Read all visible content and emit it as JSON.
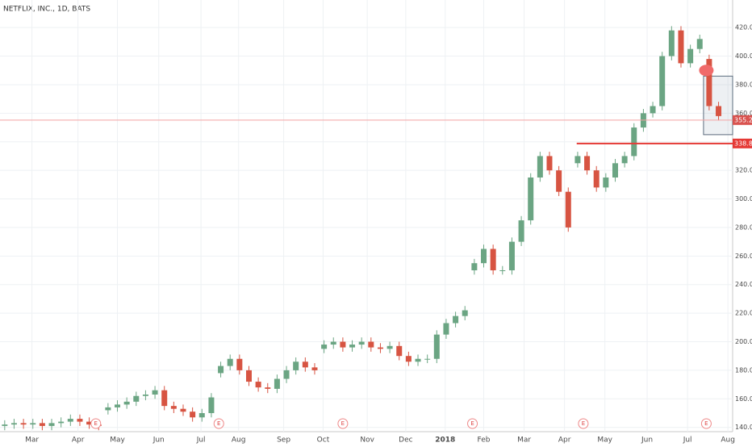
{
  "chart_data": {
    "type": "candlestick",
    "title": "NETFLIX, INC., 1D, BATS",
    "x": [
      0,
      1,
      2,
      3,
      4,
      5,
      6,
      7,
      8,
      9,
      10,
      11,
      12,
      13,
      14,
      15,
      16,
      17,
      18,
      19,
      20,
      21,
      22,
      23,
      24,
      25,
      26,
      27,
      28,
      29,
      30,
      31,
      32,
      33,
      34,
      35,
      36,
      37,
      38,
      39,
      40,
      41,
      42,
      43,
      44,
      45,
      46,
      47,
      48,
      49,
      50,
      51,
      52,
      53,
      54,
      55,
      56,
      57,
      58,
      59,
      60,
      61,
      62,
      63,
      64,
      65,
      66,
      67,
      68,
      69,
      70,
      71,
      72,
      73,
      74,
      75,
      76
    ],
    "open": [
      141,
      142,
      143,
      142,
      143,
      141,
      143,
      144,
      146,
      144,
      142,
      152,
      154,
      156,
      158,
      162,
      163,
      166,
      155,
      153,
      151,
      147,
      150,
      178,
      183,
      188,
      180,
      172,
      168,
      167,
      174,
      180,
      186,
      182,
      195,
      198,
      200,
      196,
      198,
      200,
      196,
      195,
      197,
      190,
      186,
      188,
      188,
      205,
      213,
      218,
      250,
      255,
      265,
      250,
      250,
      270,
      285,
      315,
      330,
      320,
      305,
      325,
      330,
      320,
      308,
      315,
      325,
      330,
      350,
      360,
      365,
      400,
      418,
      395,
      405,
      398,
      365
    ],
    "high": [
      145,
      146,
      146,
      146,
      146,
      146,
      147,
      149,
      149,
      147,
      145,
      157,
      159,
      161,
      165,
      166,
      169,
      169,
      158,
      156,
      154,
      153,
      164,
      186,
      191,
      191,
      183,
      175,
      171,
      177,
      183,
      189,
      189,
      185,
      201,
      203,
      203,
      201,
      203,
      203,
      199,
      200,
      200,
      193,
      191,
      191,
      208,
      216,
      221,
      225,
      258,
      268,
      268,
      253,
      273,
      288,
      318,
      333,
      333,
      323,
      308,
      333,
      333,
      323,
      318,
      328,
      333,
      353,
      363,
      368,
      403,
      421,
      421,
      408,
      415,
      401,
      368
    ],
    "low": [
      138,
      139,
      139,
      139,
      138,
      138,
      140,
      141,
      141,
      139,
      138,
      149,
      151,
      153,
      155,
      159,
      160,
      152,
      150,
      148,
      144,
      144,
      147,
      175,
      180,
      177,
      169,
      165,
      164,
      164,
      171,
      177,
      179,
      177,
      192,
      195,
      193,
      193,
      195,
      193,
      192,
      192,
      187,
      183,
      183,
      185,
      185,
      202,
      210,
      215,
      247,
      252,
      247,
      247,
      247,
      267,
      282,
      312,
      317,
      302,
      277,
      322,
      317,
      305,
      305,
      312,
      322,
      327,
      347,
      357,
      362,
      397,
      392,
      392,
      402,
      362,
      355
    ],
    "close": [
      142,
      143,
      142,
      143,
      141,
      143,
      144,
      146,
      144,
      142,
      141,
      154,
      156,
      158,
      162,
      163,
      166,
      155,
      153,
      151,
      147,
      150,
      161,
      183,
      188,
      180,
      172,
      168,
      167,
      174,
      180,
      186,
      182,
      180,
      198,
      200,
      196,
      198,
      200,
      196,
      195,
      197,
      190,
      186,
      188,
      188,
      205,
      213,
      218,
      222,
      255,
      265,
      250,
      250,
      270,
      285,
      315,
      330,
      320,
      305,
      280,
      330,
      320,
      308,
      315,
      325,
      330,
      350,
      360,
      365,
      400,
      418,
      395,
      405,
      412,
      365,
      358
    ],
    "up_color": "#6ba583",
    "down_color": "#d75442",
    "xlim": [
      -0.5,
      77.5
    ],
    "ylim": [
      137,
      428
    ],
    "xticks": [
      {
        "value": 2.9,
        "label": "Mar"
      },
      {
        "value": 7.8,
        "label": "Apr"
      },
      {
        "value": 12.0,
        "label": "May"
      },
      {
        "value": 16.4,
        "label": "Jun"
      },
      {
        "value": 20.9,
        "label": "Jul"
      },
      {
        "value": 24.9,
        "label": "Aug"
      },
      {
        "value": 29.7,
        "label": "Sep"
      },
      {
        "value": 33.9,
        "label": "Oct"
      },
      {
        "value": 38.6,
        "label": "Nov"
      },
      {
        "value": 42.7,
        "label": "Dec"
      },
      {
        "value": 46.9,
        "label": "2018"
      },
      {
        "value": 51.0,
        "label": "Feb"
      },
      {
        "value": 55.3,
        "label": "Mar"
      },
      {
        "value": 59.6,
        "label": "Apr"
      },
      {
        "value": 63.9,
        "label": "May"
      },
      {
        "value": 68.4,
        "label": "Jun"
      },
      {
        "value": 72.7,
        "label": "Jul"
      },
      {
        "value": 77.0,
        "label": "Aug"
      }
    ],
    "yticks": [
      {
        "value": 140,
        "label": "140.00"
      },
      {
        "value": 160,
        "label": "160.00"
      },
      {
        "value": 180,
        "label": "180.00"
      },
      {
        "value": 200,
        "label": "200.00"
      },
      {
        "value": 220,
        "label": "220.00"
      },
      {
        "value": 240,
        "label": "240.00"
      },
      {
        "value": 260,
        "label": "260.00"
      },
      {
        "value": 280,
        "label": "280.00"
      },
      {
        "value": 300,
        "label": "300.00"
      },
      {
        "value": 320,
        "label": "320.00"
      },
      {
        "value": 340,
        "label": "340.00"
      },
      {
        "value": 360,
        "label": "360.00"
      },
      {
        "value": 380,
        "label": "380.00"
      },
      {
        "value": 400,
        "label": "400.00"
      },
      {
        "value": 420,
        "label": "420.00"
      }
    ],
    "grid": true,
    "price_lines": [
      {
        "value": 355.21,
        "label": "355.21",
        "color": "#f4a3a3",
        "start": -0.5
      },
      {
        "value": 338.82,
        "label": "338.82",
        "color": "#e53935",
        "start": 60.9
      }
    ],
    "box": {
      "x": [
        74.4,
        77.5
      ],
      "y": [
        345,
        386
      ]
    },
    "marker": {
      "x": 74.7,
      "y": 390,
      "color": "#f06a6a"
    },
    "events": {
      "x": [
        9.7,
        22.8,
        36.0,
        49.8,
        61.6,
        74.7
      ],
      "labels": [
        "E",
        "E",
        "E",
        "E",
        "E",
        "E"
      ]
    }
  }
}
